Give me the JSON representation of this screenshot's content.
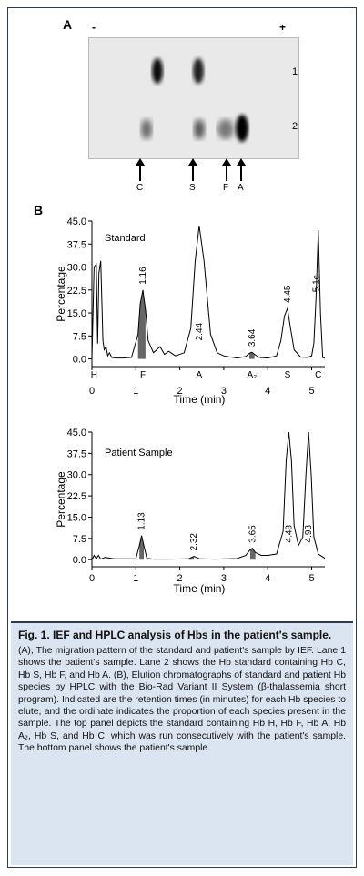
{
  "panel_a": {
    "label": "A",
    "minus": "-",
    "plus": "+",
    "lane_labels": [
      "1",
      "2"
    ],
    "band_labels": [
      "C",
      "S",
      "F",
      "A"
    ]
  },
  "panel_b": {
    "label": "B"
  },
  "chart_data": [
    {
      "type": "line",
      "title": "Standard",
      "xlabel": "Time (min)",
      "ylabel": "Percentage",
      "x_ticks": [
        "0",
        "1",
        "2",
        "3",
        "4",
        "5"
      ],
      "y_ticks": [
        "45.0",
        "37.5",
        "30.0",
        "22.5",
        "15.0",
        "7.5",
        "0.0"
      ],
      "xlim": [
        0,
        5.3
      ],
      "ylim": [
        -2.5,
        45
      ],
      "peak_labels": [
        {
          "x": 1.16,
          "label": "1.16"
        },
        {
          "x": 2.44,
          "label": "2.44"
        },
        {
          "x": 3.64,
          "label": "3.64"
        },
        {
          "x": 4.45,
          "label": "4.45"
        },
        {
          "x": 5.1,
          "label": "5.1c"
        }
      ],
      "species_labels": [
        {
          "x": 0.05,
          "label": "H"
        },
        {
          "x": 1.16,
          "label": "F"
        },
        {
          "x": 2.44,
          "label": "A"
        },
        {
          "x": 3.64,
          "label": "A₂"
        },
        {
          "x": 4.45,
          "label": "S"
        },
        {
          "x": 5.15,
          "label": "C"
        }
      ],
      "series": [
        {
          "x": [
            0.0,
            0.05,
            0.1,
            0.13,
            0.16,
            0.2,
            0.25,
            0.28,
            0.32,
            0.36,
            0.4,
            0.45,
            0.55,
            0.7,
            0.9,
            1.05,
            1.1,
            1.16,
            1.22,
            1.28,
            1.4,
            1.55,
            1.65,
            1.75,
            1.9,
            2.1,
            2.25,
            2.35,
            2.44,
            2.55,
            2.7,
            2.85,
            3.0,
            3.3,
            3.5,
            3.58,
            3.64,
            3.7,
            3.8,
            4.0,
            4.2,
            4.3,
            4.38,
            4.45,
            4.52,
            4.6,
            4.75,
            4.9,
            5.0,
            5.05,
            5.1,
            5.15,
            5.2,
            5.25,
            5.3
          ],
          "y": [
            0,
            30,
            31,
            5,
            28,
            32,
            6,
            3,
            4,
            1,
            2,
            0.5,
            0.3,
            0.3,
            0.5,
            8,
            18,
            22.5,
            16,
            6,
            2,
            4,
            1.5,
            2.5,
            1,
            2,
            10,
            32,
            43.5,
            32,
            8,
            2,
            1,
            0.3,
            0.8,
            1.8,
            2.2,
            1.5,
            0.5,
            0.3,
            1,
            6,
            14,
            16.5,
            10,
            3,
            0.6,
            0.5,
            1,
            5,
            20,
            42,
            15,
            0.5,
            0.2
          ]
        }
      ],
      "shaded_peaks": [
        1.16,
        3.64
      ]
    },
    {
      "type": "line",
      "title": "Patient Sample",
      "xlabel": "Time (min)",
      "ylabel": "Percentage",
      "x_ticks": [
        "0",
        "1",
        "2",
        "3",
        "4",
        "5"
      ],
      "y_ticks": [
        "45.0",
        "37.5",
        "30.0",
        "22.5",
        "15.0",
        "7.5",
        "0.0"
      ],
      "xlim": [
        0,
        5.3
      ],
      "ylim": [
        -2.5,
        45
      ],
      "peak_labels": [
        {
          "x": 1.13,
          "label": "1.13"
        },
        {
          "x": 2.32,
          "label": "2.32"
        },
        {
          "x": 3.65,
          "label": "3.65"
        },
        {
          "x": 4.48,
          "label": "4.48"
        },
        {
          "x": 4.93,
          "label": "4.93"
        }
      ],
      "series": [
        {
          "x": [
            0.0,
            0.05,
            0.1,
            0.15,
            0.2,
            0.3,
            0.5,
            0.8,
            1.0,
            1.08,
            1.13,
            1.18,
            1.25,
            1.4,
            1.8,
            2.2,
            2.32,
            2.45,
            2.8,
            3.3,
            3.5,
            3.6,
            3.65,
            3.72,
            3.85,
            4.0,
            4.2,
            4.35,
            4.42,
            4.48,
            4.54,
            4.6,
            4.7,
            4.8,
            4.87,
            4.93,
            4.99,
            5.05,
            5.15,
            5.3
          ],
          "y": [
            0,
            1.5,
            0.3,
            1.5,
            0.2,
            0.8,
            0.3,
            0.3,
            0.3,
            5,
            8.5,
            5,
            0.5,
            0.2,
            0.2,
            0.3,
            1.2,
            0.3,
            0.2,
            0.4,
            1.5,
            3.5,
            4,
            2.5,
            1.5,
            1.5,
            2,
            10,
            35,
            45,
            35,
            12,
            5,
            8,
            30,
            45,
            30,
            8,
            2,
            0.5
          ]
        }
      ],
      "shaded_peaks": [
        1.13,
        2.32,
        3.65
      ]
    }
  ],
  "caption": {
    "title": "Fig. 1.  IEF and HPLC analysis of Hbs in the patient's sample.",
    "body": "(A), The migration pattern of the standard and patient's sample by IEF. Lane 1 shows the patient's sample. Lane 2 shows the Hb standard containing Hb C, Hb S, Hb F, and Hb A. (B), Elution chromatographs of standard and patient Hb species by HPLC with the Bio-Rad Variant II System (β-thalassemia short program). Indicated are the retention times (in minutes) for each Hb species to elute, and the ordinate indicates the proportion of each species present in the sample. The top panel depicts the standard containing Hb H, Hb F, Hb A, Hb A₂, Hb S, and Hb C, which was run consecutively with the patient's sample. The bottom panel shows the patient's sample."
  }
}
